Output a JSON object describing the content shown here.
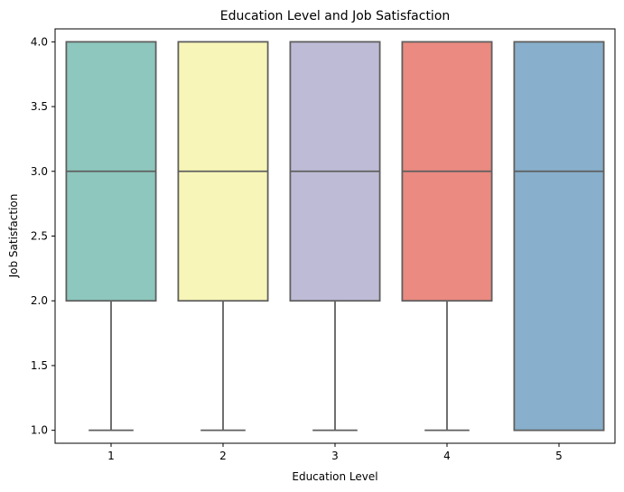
{
  "chart_data": {
    "type": "box",
    "title": "Education Level and Job Satisfaction",
    "xlabel": "Education Level",
    "ylabel": "Job Satisfaction",
    "categories": [
      "1",
      "2",
      "3",
      "4",
      "5"
    ],
    "ylim": [
      0.9,
      4.1
    ],
    "yticks": [
      1.0,
      1.5,
      2.0,
      2.5,
      3.0,
      3.5,
      4.0
    ],
    "ytick_labels": [
      "1.0",
      "1.5",
      "2.0",
      "2.5",
      "3.0",
      "3.5",
      "4.0"
    ],
    "grid": false,
    "boxes": [
      {
        "category": "1",
        "whisker_low": 1.0,
        "q1": 2.0,
        "median": 3.0,
        "q3": 4.0,
        "whisker_high": 4.0,
        "color": "#8dc7be"
      },
      {
        "category": "2",
        "whisker_low": 1.0,
        "q1": 2.0,
        "median": 3.0,
        "q3": 4.0,
        "whisker_high": 4.0,
        "color": "#f7f5b7"
      },
      {
        "category": "3",
        "whisker_low": 1.0,
        "q1": 2.0,
        "median": 3.0,
        "q3": 4.0,
        "whisker_high": 4.0,
        "color": "#bebbd6"
      },
      {
        "category": "4",
        "whisker_low": 1.0,
        "q1": 2.0,
        "median": 3.0,
        "q3": 4.0,
        "whisker_high": 4.0,
        "color": "#ea8a80"
      },
      {
        "category": "5",
        "whisker_low": 1.0,
        "q1": 1.0,
        "median": 3.0,
        "q3": 4.0,
        "whisker_high": 4.0,
        "color": "#88afcb"
      }
    ],
    "line_color": "#5f5f5f"
  }
}
